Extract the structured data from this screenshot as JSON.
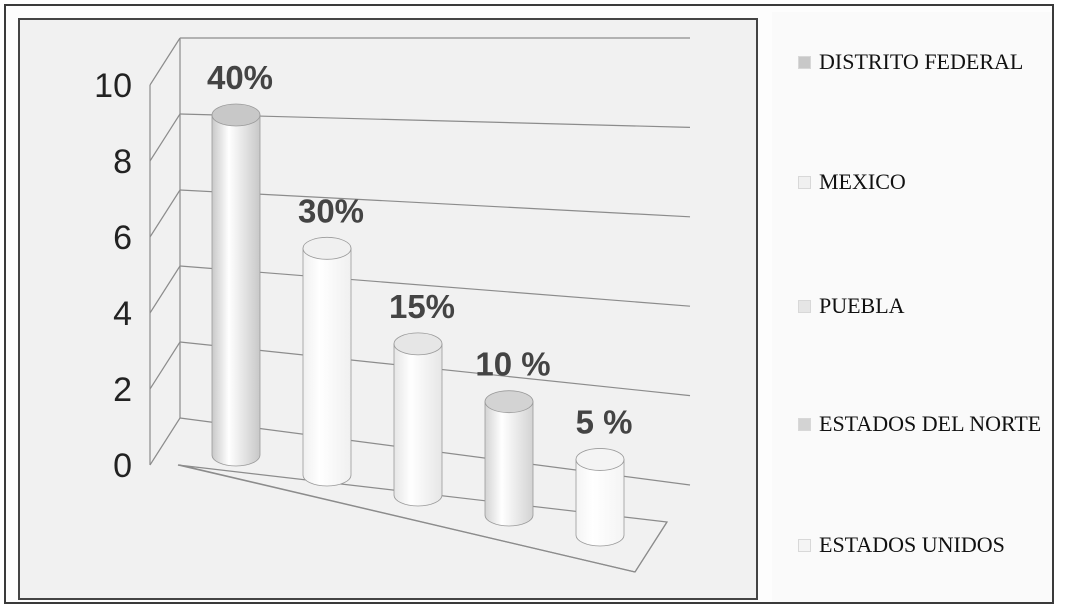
{
  "chart_data": {
    "type": "bar",
    "style": "3d-cylinder",
    "categories": [
      "DISTRITO FEDERAL",
      "MEXICO",
      "PUEBLA",
      "ESTADOS DEL NORTE",
      "ESTADOS UNIDOS"
    ],
    "values": [
      9,
      6,
      4,
      3,
      2
    ],
    "data_labels": [
      "40%",
      "30%",
      "15%",
      "10 %",
      "5 %"
    ],
    "yticks": [
      "0",
      "2",
      "4",
      "6",
      "8",
      "10"
    ],
    "ylim": [
      0,
      10
    ],
    "legend_position": "right",
    "grid": true,
    "colors": [
      "#c8c8c8",
      "#f0f0f0",
      "#e6e6e6",
      "#d3d3d3",
      "#f4f4f4"
    ]
  },
  "legend": {
    "items": [
      {
        "label": "DISTRITO FEDERAL",
        "color": "#c8c8c8"
      },
      {
        "label": "MEXICO",
        "color": "#f0f0f0"
      },
      {
        "label": "PUEBLA",
        "color": "#e6e6e6"
      },
      {
        "label": "ESTADOS DEL NORTE",
        "color": "#d3d3d3"
      },
      {
        "label": "ESTADOS UNIDOS",
        "color": "#f4f4f4"
      }
    ]
  }
}
